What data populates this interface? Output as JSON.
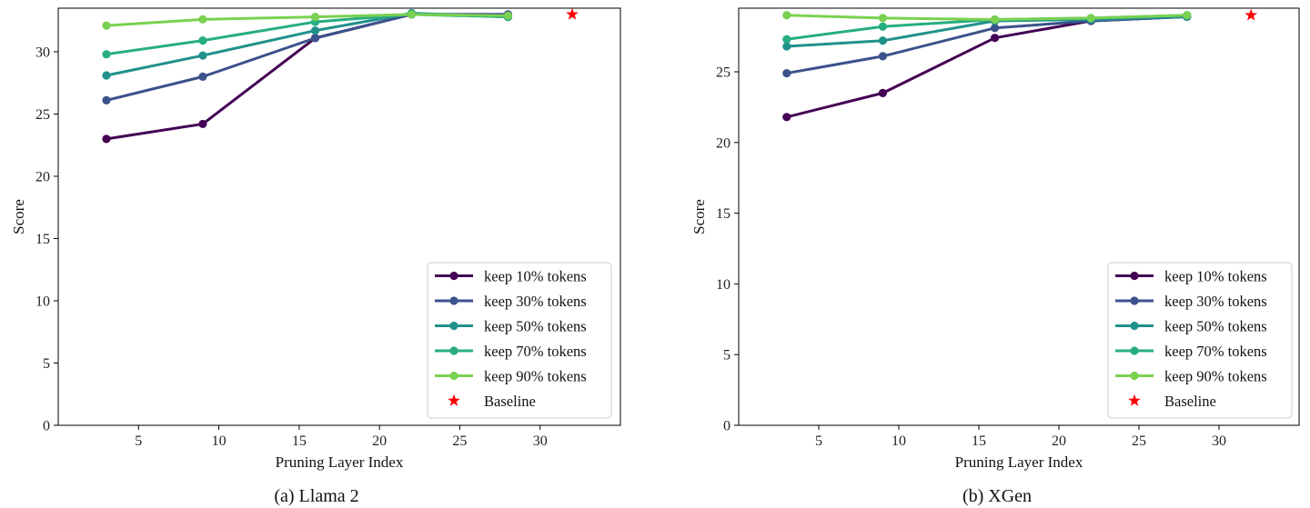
{
  "chart_data": [
    {
      "type": "line",
      "caption": "(a) Llama 2",
      "xlabel": "Pruning Layer Index",
      "ylabel": "Score",
      "xlim": [
        0,
        35
      ],
      "ylim": [
        0,
        33.5
      ],
      "xticks": [
        5,
        10,
        15,
        20,
        25,
        30
      ],
      "yticks": [
        0,
        5,
        10,
        15,
        20,
        25,
        30
      ],
      "x": [
        3,
        9,
        16,
        22,
        28
      ],
      "series": [
        {
          "name": "keep 10% tokens",
          "color": "#440154",
          "values": [
            23.0,
            24.2,
            31.1,
            33.0,
            33.0
          ]
        },
        {
          "name": "keep 30% tokens",
          "color": "#3b528b",
          "values": [
            26.1,
            28.0,
            31.1,
            33.0,
            33.0
          ]
        },
        {
          "name": "keep 50% tokens",
          "color": "#21918c",
          "values": [
            28.1,
            29.7,
            31.7,
            33.1,
            32.8
          ]
        },
        {
          "name": "keep 70% tokens",
          "color": "#27ad81",
          "values": [
            29.8,
            30.9,
            32.4,
            33.0,
            32.8
          ]
        },
        {
          "name": "keep 90% tokens",
          "color": "#7ad151",
          "values": [
            32.1,
            32.6,
            32.8,
            33.0,
            32.9
          ]
        }
      ],
      "baseline": {
        "name": "Baseline",
        "x": 32,
        "y": 33.0,
        "color": "#ff0000"
      },
      "legend_position": "lower-right"
    },
    {
      "type": "line",
      "caption": "(b) XGen",
      "xlabel": "Pruning Layer Index",
      "ylabel": "Score",
      "xlim": [
        0,
        35
      ],
      "ylim": [
        0,
        29.5
      ],
      "xticks": [
        5,
        10,
        15,
        20,
        25,
        30
      ],
      "yticks": [
        0,
        5,
        10,
        15,
        20,
        25
      ],
      "x": [
        3,
        9,
        16,
        22,
        28
      ],
      "series": [
        {
          "name": "keep 10% tokens",
          "color": "#440154",
          "values": [
            21.8,
            23.5,
            27.4,
            28.6,
            28.9
          ]
        },
        {
          "name": "keep 30% tokens",
          "color": "#3b528b",
          "values": [
            24.9,
            26.1,
            28.1,
            28.6,
            28.9
          ]
        },
        {
          "name": "keep 50% tokens",
          "color": "#21918c",
          "values": [
            26.8,
            27.2,
            28.6,
            28.7,
            28.9
          ]
        },
        {
          "name": "keep 70% tokens",
          "color": "#27ad81",
          "values": [
            27.3,
            28.2,
            28.7,
            28.8,
            29.0
          ]
        },
        {
          "name": "keep 90% tokens",
          "color": "#7ad151",
          "values": [
            29.0,
            28.8,
            28.7,
            28.8,
            29.0
          ]
        }
      ],
      "baseline": {
        "name": "Baseline",
        "x": 32,
        "y": 29.0,
        "color": "#ff0000"
      },
      "legend_position": "lower-right"
    }
  ]
}
